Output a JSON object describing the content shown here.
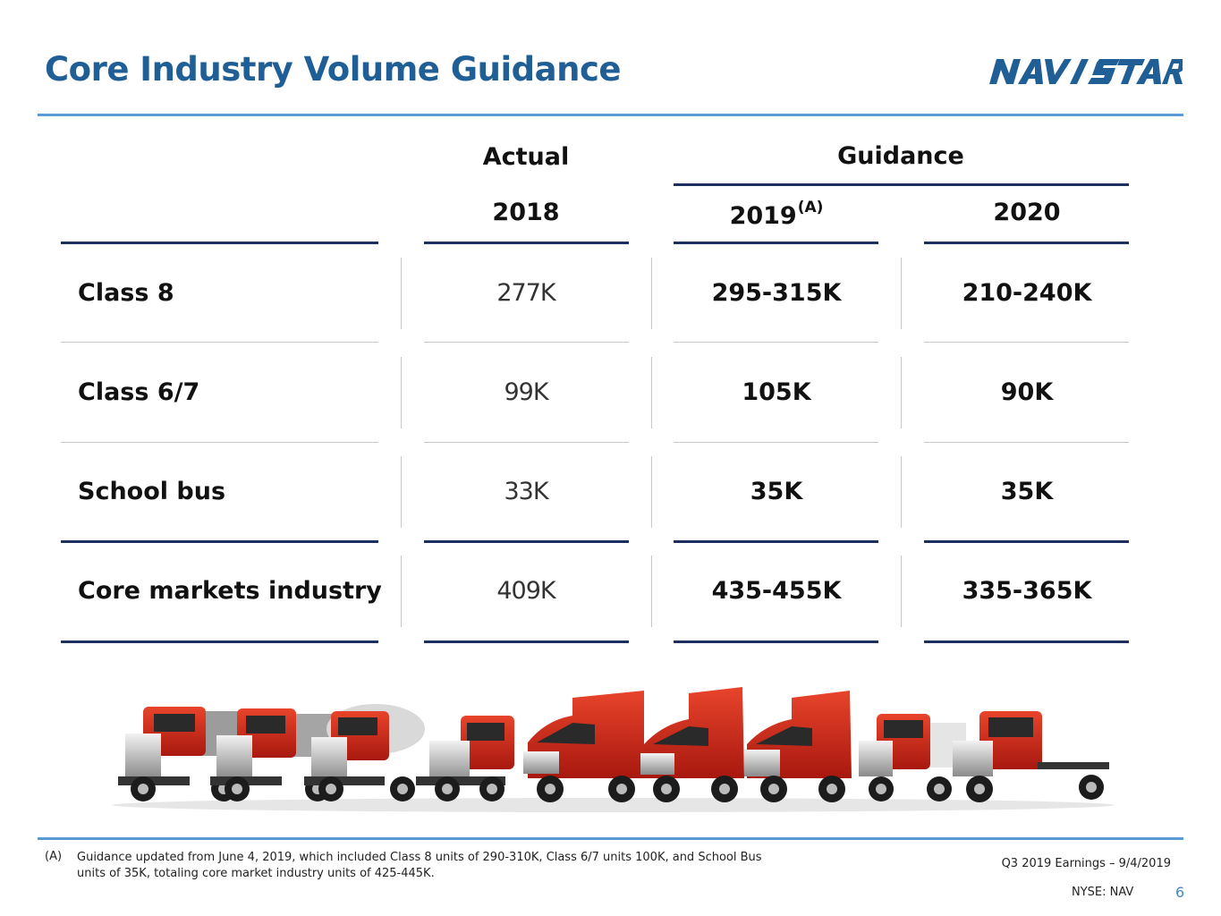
{
  "slide": {
    "title": "Core Industry Volume Guidance",
    "logo_text": "NAVISTAR",
    "brand_color": "#1f5f96",
    "accent_rule_color": "#5b9bd5",
    "table_rule_color": "#1c2f5e"
  },
  "table": {
    "group_headers": {
      "actual": "Actual",
      "guidance": "Guidance"
    },
    "years": {
      "y2018": "2018",
      "y2019": "2019",
      "y2019_note": "(A)",
      "y2020": "2020"
    },
    "rows": [
      {
        "label": "Class 8",
        "actual_2018": "277K",
        "guidance_2019": "295-315K",
        "guidance_2020": "210-240K"
      },
      {
        "label": "Class 6/7",
        "actual_2018": "99K",
        "guidance_2019": "105K",
        "guidance_2020": "90K"
      },
      {
        "label": "School bus",
        "actual_2018": "33K",
        "guidance_2019": "35K",
        "guidance_2020": "35K"
      },
      {
        "label": "Core markets industry",
        "actual_2018": "409K",
        "guidance_2019": "435-455K",
        "guidance_2020": "335-365K"
      }
    ]
  },
  "image": {
    "description_icon": "truck-lineup-image"
  },
  "footnote": {
    "marker": "(A)",
    "text": "Guidance updated from June 4, 2019, which included Class 8 units of 290-310K, Class 6/7 units 100K, and School Bus units of 35K, totaling core market industry units of 425-445K."
  },
  "footer": {
    "event": "Q3 2019 Earnings – 9/4/2019",
    "ticker": "NYSE: NAV",
    "page": "6"
  }
}
